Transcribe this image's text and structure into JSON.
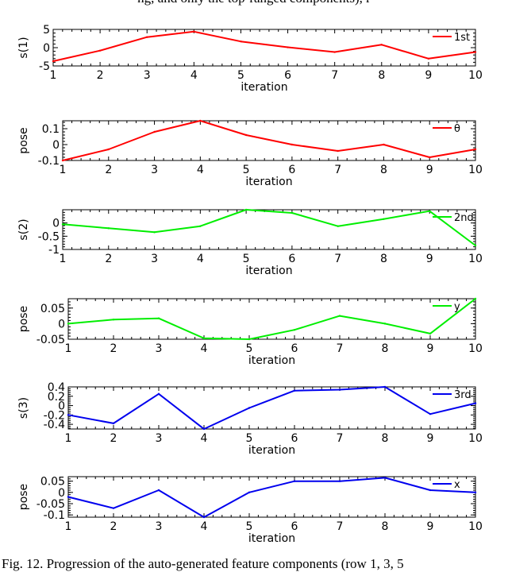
{
  "top_text": "ng, and only the top-ranged components), r",
  "caption": "Fig. 12.   Progression of the auto-generated feature components (row 1, 3, 5",
  "chart_data": [
    {
      "type": "line",
      "xlabel": "iteration",
      "ylabel": "s(1)",
      "x": [
        1,
        2,
        3,
        4,
        5,
        6,
        7,
        8,
        9,
        10
      ],
      "xlim": [
        1,
        10
      ],
      "ylim": [
        -5,
        5
      ],
      "yticks": [
        -5,
        0,
        5
      ],
      "series": [
        {
          "name": "1st",
          "color": "#ff0000",
          "values": [
            -3.7,
            -0.8,
            2.9,
            4.4,
            1.7,
            0.1,
            -1.2,
            0.8,
            -3.0,
            -1.2
          ]
        }
      ],
      "legend": "top-right"
    },
    {
      "type": "line",
      "xlabel": "iteration",
      "ylabel": "pose",
      "x": [
        1,
        2,
        3,
        4,
        5,
        6,
        7,
        8,
        9,
        10
      ],
      "xlim": [
        1,
        10
      ],
      "ylim": [
        -0.1,
        0.15
      ],
      "yticks": [
        -0.1,
        0,
        0.1
      ],
      "series": [
        {
          "name": "θ",
          "color": "#ff0000",
          "values": [
            -0.1,
            -0.03,
            0.08,
            0.15,
            0.06,
            0.0,
            -0.04,
            0.0,
            -0.08,
            -0.03
          ]
        }
      ],
      "legend": "top-right"
    },
    {
      "type": "line",
      "xlabel": "iteration",
      "ylabel": "s(2)",
      "x": [
        1,
        2,
        3,
        4,
        5,
        6,
        7,
        8,
        9,
        10
      ],
      "xlim": [
        1,
        10
      ],
      "ylim": [
        -1,
        0.5
      ],
      "yticks": [
        -1,
        -0.5,
        0
      ],
      "series": [
        {
          "name": "2nd",
          "color": "#00ee00",
          "values": [
            -0.05,
            -0.2,
            -0.35,
            -0.12,
            0.5,
            0.38,
            -0.12,
            0.15,
            0.45,
            -0.85
          ]
        }
      ],
      "legend": "top-right"
    },
    {
      "type": "line",
      "xlabel": "iteration",
      "ylabel": "pose",
      "x": [
        1,
        2,
        3,
        4,
        5,
        6,
        7,
        8,
        9,
        10
      ],
      "xlim": [
        1,
        10
      ],
      "ylim": [
        -0.05,
        0.08
      ],
      "yticks": [
        -0.05,
        0,
        0.05
      ],
      "series": [
        {
          "name": "y",
          "color": "#00ee00",
          "values": [
            0.0,
            0.013,
            0.017,
            -0.047,
            -0.05,
            -0.02,
            0.025,
            0.0,
            -0.032,
            0.08
          ]
        }
      ],
      "legend": "top-right"
    },
    {
      "type": "line",
      "xlabel": "iteration",
      "ylabel": "s(3)",
      "x": [
        1,
        2,
        3,
        4,
        5,
        6,
        7,
        8,
        9,
        10
      ],
      "xlim": [
        1,
        10
      ],
      "ylim": [
        -0.5,
        0.4
      ],
      "yticks": [
        -0.4,
        -0.2,
        0,
        0.2,
        0.4
      ],
      "series": [
        {
          "name": "3rd",
          "color": "#0000ee",
          "values": [
            -0.2,
            -0.38,
            0.25,
            -0.5,
            -0.05,
            0.32,
            0.34,
            0.4,
            -0.18,
            0.05
          ]
        }
      ],
      "legend": "top-right"
    },
    {
      "type": "line",
      "xlabel": "iteration",
      "ylabel": "pose",
      "x": [
        1,
        2,
        3,
        4,
        5,
        6,
        7,
        8,
        9,
        10
      ],
      "xlim": [
        1,
        10
      ],
      "ylim": [
        -0.11,
        0.07
      ],
      "yticks": [
        -0.1,
        -0.05,
        0,
        0.05
      ],
      "series": [
        {
          "name": "x",
          "color": "#0000ee",
          "values": [
            -0.02,
            -0.07,
            0.01,
            -0.11,
            0.0,
            0.05,
            0.05,
            0.065,
            0.01,
            0.0
          ]
        }
      ],
      "legend": "top-right"
    }
  ]
}
